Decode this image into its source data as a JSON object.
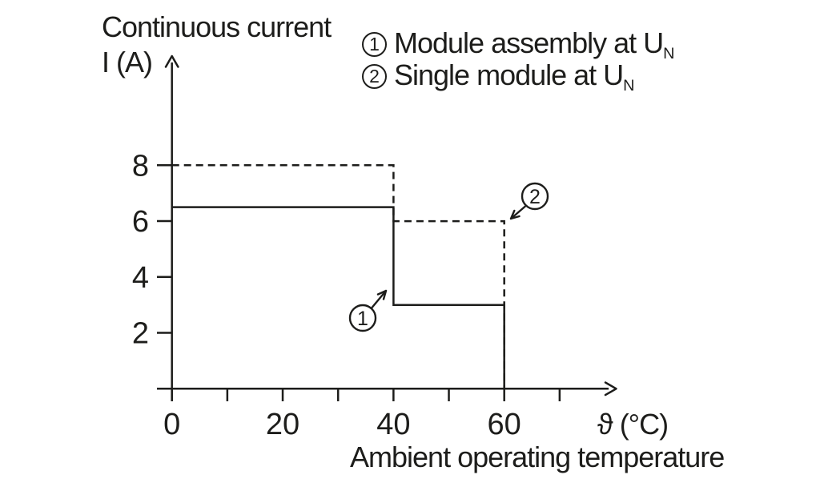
{
  "title": {
    "line1": "Continuous current",
    "line2": "I (A)"
  },
  "x_axis": {
    "symbol_label": "ϑ (°C)",
    "caption": "Ambient operating temperature",
    "tick_positions": [
      0,
      10,
      20,
      30,
      40,
      50,
      60,
      70
    ],
    "labeled_ticks": [
      0,
      20,
      40,
      60
    ],
    "range_shown": [
      0,
      80
    ]
  },
  "y_axis": {
    "tick_positions": [
      2,
      4,
      6,
      8
    ],
    "labeled_ticks": [
      2,
      4,
      6,
      8
    ],
    "range_shown": [
      0,
      12
    ]
  },
  "legend": {
    "items": [
      {
        "marker": "1",
        "text": "Module assembly at U",
        "subscript": "N"
      },
      {
        "marker": "2",
        "text": "Single module at U",
        "subscript": "N"
      }
    ]
  },
  "chart_data": {
    "type": "line",
    "title": "Continuous current derating vs ambient operating temperature",
    "xlabel": "Ambient operating temperature ϑ (°C)",
    "ylabel": "Continuous current I (A)",
    "xlim": [
      0,
      80
    ],
    "ylim": [
      0,
      12
    ],
    "grid": false,
    "legend_position": "top-right",
    "x_ticks": [
      0,
      10,
      20,
      30,
      40,
      50,
      60,
      70
    ],
    "x_tick_labels": [
      "0",
      "20",
      "40",
      "60"
    ],
    "y_ticks": [
      2,
      4,
      6,
      8
    ],
    "series": [
      {
        "name": "Module assembly at UN",
        "marker_label": "1",
        "line_style": "solid",
        "points": [
          [
            0,
            6.5
          ],
          [
            40,
            6.5
          ],
          [
            40,
            3
          ],
          [
            60,
            3
          ],
          [
            60,
            0
          ]
        ]
      },
      {
        "name": "Single module at UN",
        "marker_label": "2",
        "line_style": "dashed",
        "points": [
          [
            0,
            8
          ],
          [
            40,
            8
          ],
          [
            40,
            6
          ],
          [
            60,
            6
          ],
          [
            60,
            0
          ]
        ]
      }
    ],
    "annotations": [
      {
        "label": "1",
        "target_point": [
          40,
          3
        ]
      },
      {
        "label": "2",
        "target_point": [
          60,
          6
        ]
      }
    ]
  },
  "colors": {
    "ink": "#1d1d1b",
    "background": "#ffffff"
  }
}
